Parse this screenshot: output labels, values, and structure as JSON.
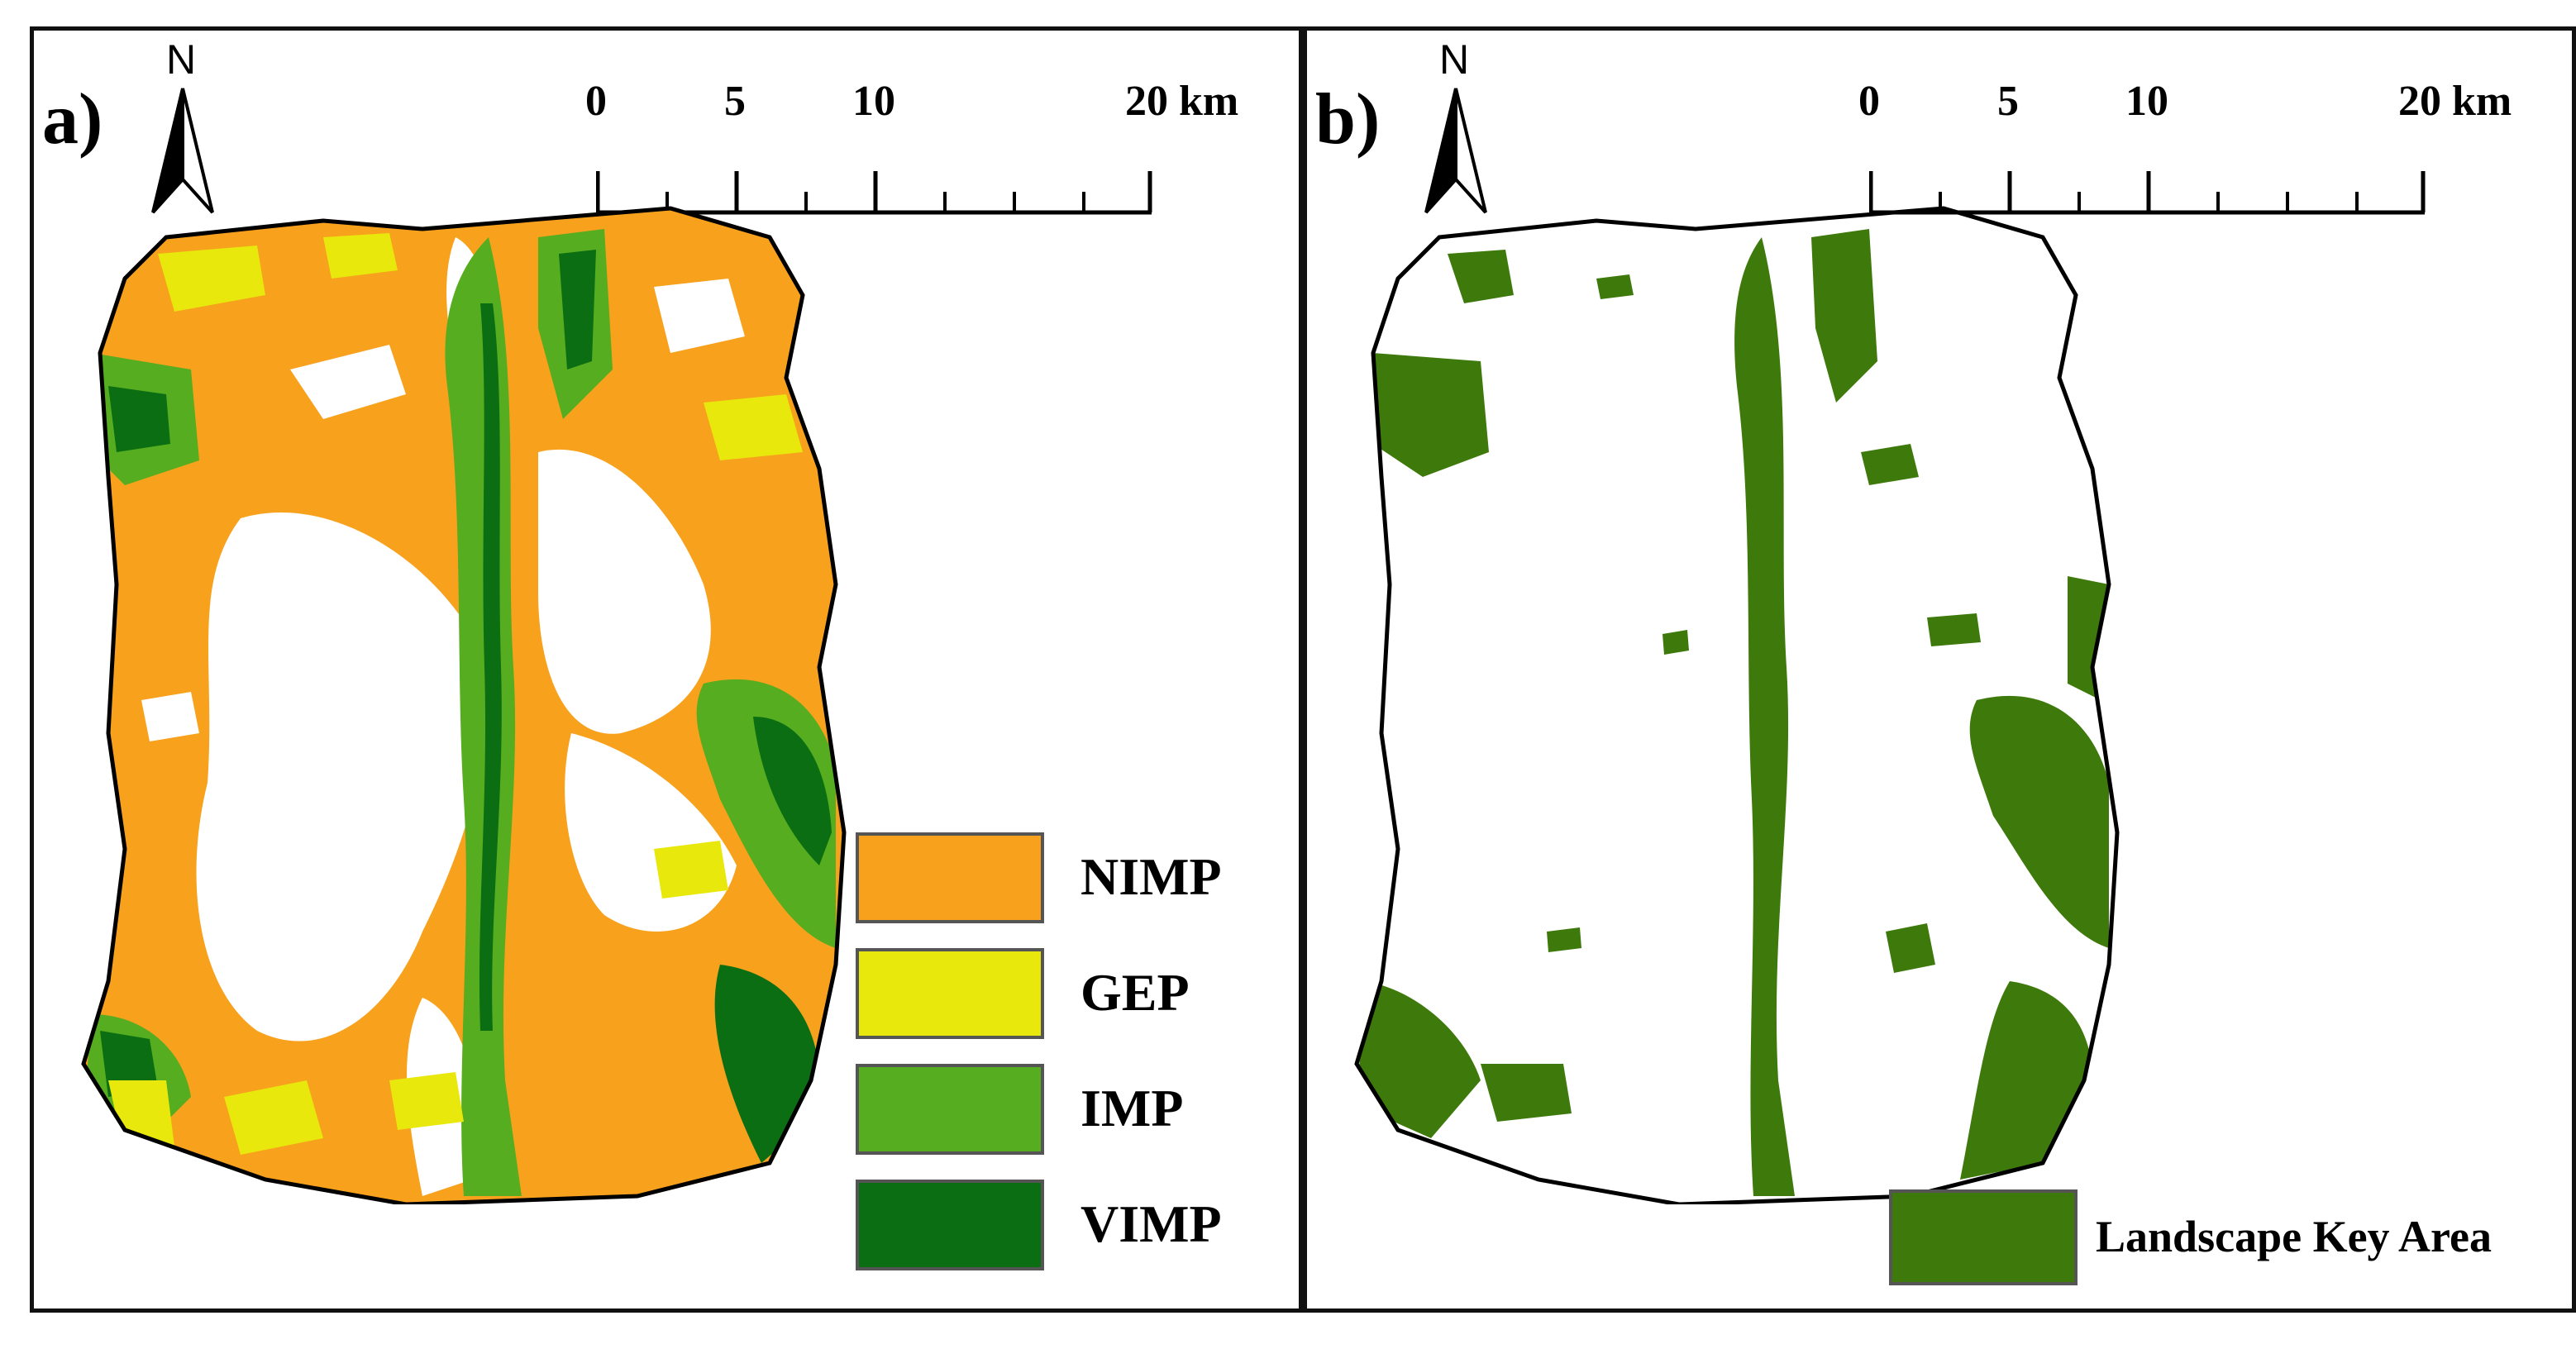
{
  "panels": [
    {
      "label": "a)",
      "north": "N",
      "scale": {
        "ticks": [
          "0",
          "5",
          "10"
        ],
        "end_label": "20 km"
      },
      "legend": [
        {
          "label": "NIMP",
          "color": "#f7a11d"
        },
        {
          "label": "GEP",
          "color": "#e8e80c"
        },
        {
          "label": "IMP",
          "color": "#55ad1f"
        },
        {
          "label": "VIMP",
          "color": "#0b6e12"
        }
      ]
    },
    {
      "label": "b)",
      "north": "N",
      "scale": {
        "ticks": [
          "0",
          "5",
          "10"
        ],
        "end_label": "20 km"
      },
      "legend": [
        {
          "label": "Landscape Key Area",
          "color": "#3e7a0b"
        }
      ]
    }
  ]
}
